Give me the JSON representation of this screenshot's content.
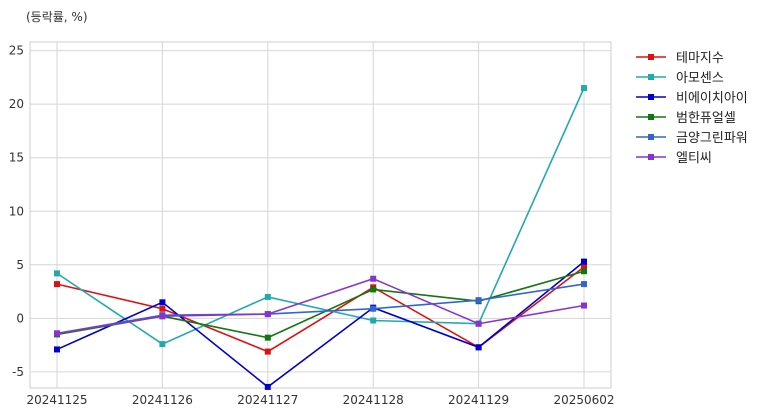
{
  "chart_data": {
    "type": "line",
    "unit_label": "(등락률, %)",
    "categories": [
      "20241125",
      "20241126",
      "20241127",
      "20241128",
      "20241129",
      "20250602"
    ],
    "yticks": [
      -5,
      0,
      5,
      10,
      15,
      20,
      25
    ],
    "ylim": [
      -6.5,
      25.8
    ],
    "grid": true,
    "legend": "right",
    "series": [
      {
        "name": "테마지수",
        "color": "#dd1111",
        "values": [
          3.2,
          0.9,
          -3.1,
          2.9,
          -2.7,
          4.8
        ]
      },
      {
        "name": "아모센스",
        "color": "#22aaaa",
        "values": [
          4.2,
          -2.4,
          2.0,
          -0.2,
          -0.5,
          21.5
        ]
      },
      {
        "name": "비에이치아이",
        "color": "#0000cc",
        "values": [
          -2.9,
          1.5,
          -6.4,
          1.0,
          -2.7,
          5.3
        ]
      },
      {
        "name": "범한퓨얼셀",
        "color": "#117711",
        "values": [
          -1.5,
          0.2,
          -1.8,
          2.7,
          1.6,
          4.4
        ]
      },
      {
        "name": "금양그린파워",
        "color": "#3366cc",
        "values": [
          -1.4,
          0.3,
          0.4,
          0.9,
          1.7,
          3.2
        ]
      },
      {
        "name": "엘티씨",
        "color": "#8833cc",
        "values": [
          -1.4,
          0.2,
          0.4,
          3.7,
          -0.5,
          1.2
        ]
      }
    ]
  }
}
